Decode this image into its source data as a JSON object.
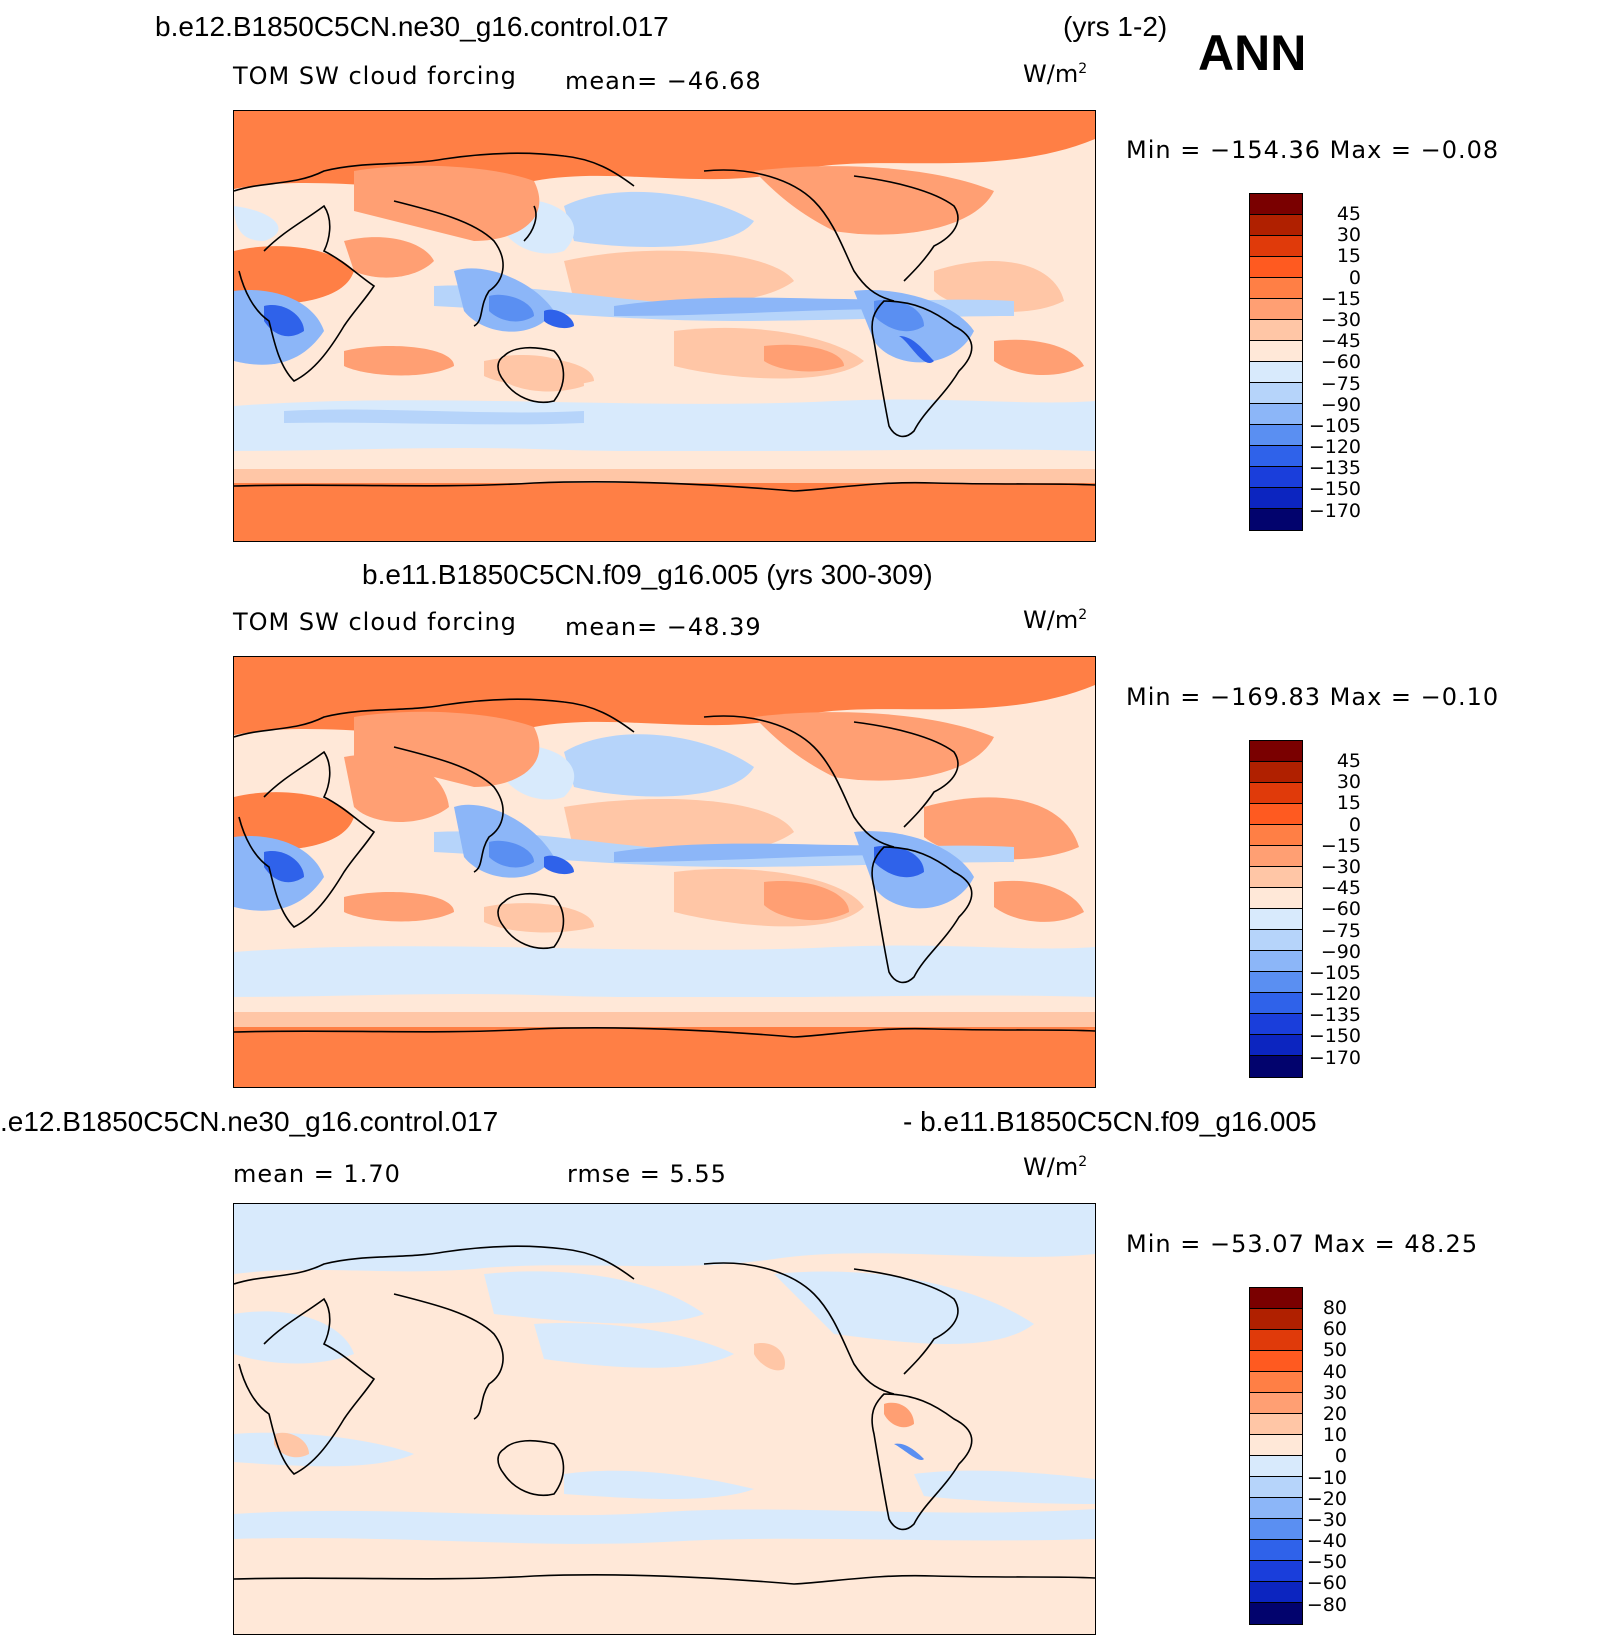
{
  "header": {
    "case_title": "b.e12.B1850C5CN.ne30_g16.control.017",
    "years": "(yrs 1-2)",
    "season": "ANN"
  },
  "panels": [
    {
      "title": "",
      "variable": "TOM SW cloud forcing",
      "stat1": "mean=  −46.68",
      "stat2": "",
      "units_base": "W/m",
      "units_exp": "2",
      "minmax": "Min  =  −154.36  Max  =   −0.08",
      "colorbar": {
        "colors": [
          "#7a0000",
          "#b02000",
          "#e03a0a",
          "#ff5a20",
          "#ff7f45",
          "#ff9f73",
          "#ffc6a6",
          "#ffe8d8",
          "#d8eafc",
          "#b6d4fa",
          "#8cb6f8",
          "#5a8ff2",
          "#2f62ea",
          "#1a3edb",
          "#0c25c0",
          "#06119a",
          "#02036d"
        ],
        "labels": [
          "45",
          "30",
          "15",
          "0",
          "−15",
          "−30",
          "−45",
          "−60",
          "−75",
          "−90",
          "−105",
          "−120",
          "−135",
          "−150",
          "−170"
        ]
      }
    },
    {
      "title": "b.e11.B1850C5CN.f09_g16.005 (yrs 300-309)",
      "variable": "TOM SW cloud forcing",
      "stat1": "mean=  −48.39",
      "stat2": "",
      "units_base": "W/m",
      "units_exp": "2",
      "minmax": "Min  =  −169.83  Max  =   −0.10",
      "colorbar": {
        "colors": [
          "#7a0000",
          "#b02000",
          "#e03a0a",
          "#ff5a20",
          "#ff7f45",
          "#ff9f73",
          "#ffc6a6",
          "#ffe8d8",
          "#d8eafc",
          "#b6d4fa",
          "#8cb6f8",
          "#5a8ff2",
          "#2f62ea",
          "#1a3edb",
          "#0c25c0",
          "#06119a",
          "#02036d"
        ],
        "labels": [
          "45",
          "30",
          "15",
          "0",
          "−15",
          "−30",
          "−45",
          "−60",
          "−75",
          "−90",
          "−105",
          "−120",
          "−135",
          "−150",
          "−170"
        ]
      }
    },
    {
      "title_left": ".e12.B1850C5CN.ne30_g16.control.017",
      "title_right": "- b.e11.B1850C5CN.f09_g16.005",
      "variable": "",
      "stat1": "mean  =     1.70",
      "stat2": "rmse  =     5.55",
      "units_base": "W/m",
      "units_exp": "2",
      "minmax": "Min  =  −53.07  Max  =   48.25",
      "colorbar": {
        "colors": [
          "#7a0000",
          "#b02000",
          "#e03a0a",
          "#ff5a20",
          "#ff7f45",
          "#ff9f73",
          "#ffc6a6",
          "#ffe8d8",
          "#d8eafc",
          "#b6d4fa",
          "#8cb6f8",
          "#5a8ff2",
          "#2f62ea",
          "#1a3edb",
          "#0c25c0",
          "#06119a",
          "#02036d"
        ],
        "labels": [
          "80",
          "60",
          "50",
          "40",
          "30",
          "20",
          "10",
          "0",
          "−10",
          "−20",
          "−30",
          "−40",
          "−50",
          "−60",
          "−80"
        ]
      }
    }
  ]
}
